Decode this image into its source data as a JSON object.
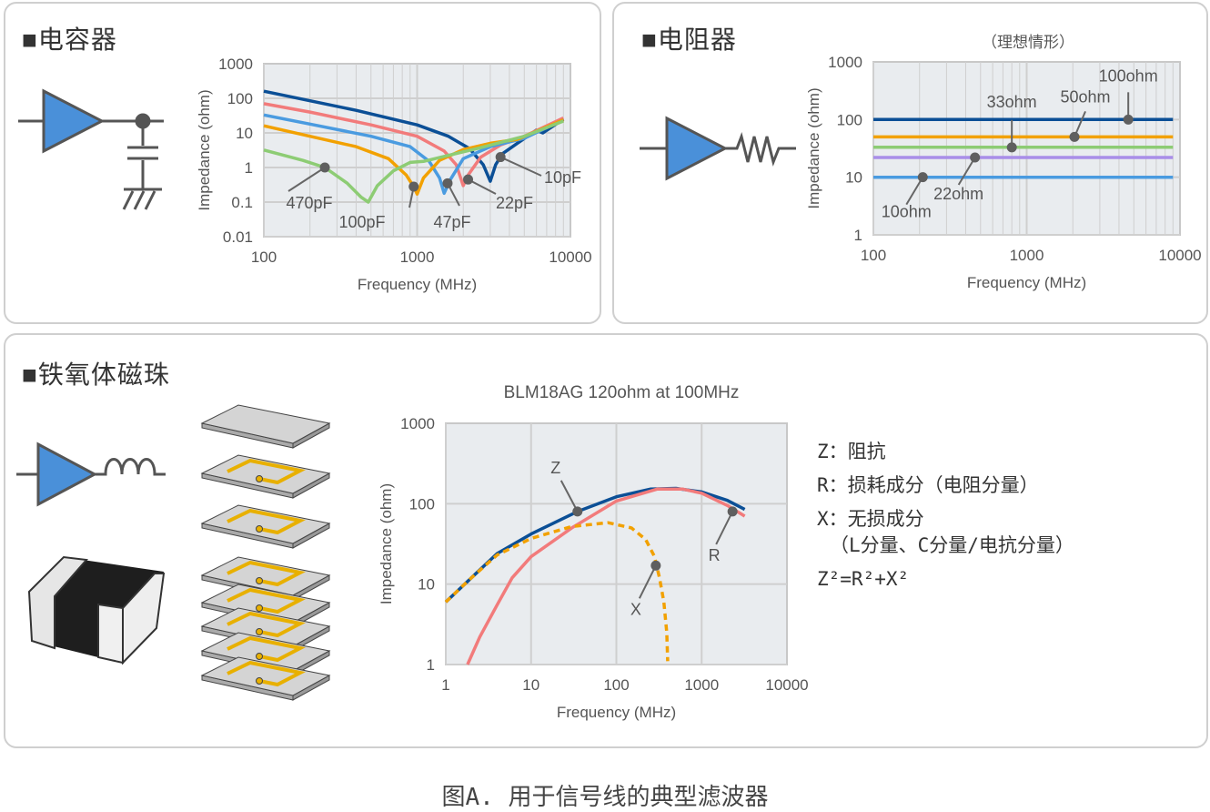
{
  "panels": {
    "capacitor": {
      "title": "■电容器"
    },
    "resistor": {
      "title": "■电阻器",
      "subtitle": "（理想情形）"
    },
    "ferrite": {
      "title": "■铁氧体磁珠",
      "chart_title": "BLM18AG 120ohm at 100MHz"
    }
  },
  "legend": {
    "z": "Z：阻抗",
    "r": "R：损耗成分（电阻分量）",
    "x": "X：无损成分",
    "x_detail": "（L分量、C分量/电抗分量）",
    "formula": "Z²=R²+X²"
  },
  "caption": "图A. 用于信号线的典型滤波器",
  "colors": {
    "dark_blue": "#0b4f96",
    "salmon": "#f27b7b",
    "light_blue": "#4a9be0",
    "orange": "#f2a100",
    "green": "#8dcc74",
    "purple": "#a98ee8",
    "grid_bg": "#e9ecef",
    "marker": "#5f5f5f"
  },
  "chart_data": [
    {
      "id": "capacitor",
      "type": "line",
      "xlabel": "Frequency (MHz)",
      "ylabel": "Impedance (ohm)",
      "xscale": "log",
      "yscale": "log",
      "xlim": [
        100,
        10000
      ],
      "ylim": [
        0.01,
        1000
      ],
      "xticks": [
        "100",
        "1000",
        "10000"
      ],
      "yticks": [
        "0.01",
        "0.1",
        "1",
        "10",
        "100",
        "1000"
      ],
      "grid": true,
      "series": [
        {
          "name": "10pF",
          "color": "#0b4f96",
          "points": [
            [
              100,
              160
            ],
            [
              200,
              85
            ],
            [
              400,
              45
            ],
            [
              1000,
              17
            ],
            [
              1600,
              8
            ],
            [
              2200,
              3.5
            ],
            [
              2700,
              1.2
            ],
            [
              3000,
              0.4
            ],
            [
              3250,
              1.2
            ],
            [
              3600,
              2.5
            ],
            [
              4500,
              5
            ],
            [
              6000,
              12
            ],
            [
              6600,
              10
            ],
            [
              9000,
              25
            ]
          ],
          "marker": [
            3500,
            2
          ]
        },
        {
          "name": "22pF",
          "color": "#f27b7b",
          "points": [
            [
              100,
              70
            ],
            [
              200,
              40
            ],
            [
              500,
              17
            ],
            [
              1000,
              8
            ],
            [
              1500,
              3
            ],
            [
              1800,
              1.2
            ],
            [
              2000,
              0.3
            ],
            [
              2150,
              0.6
            ],
            [
              2600,
              2
            ],
            [
              3500,
              4.5
            ],
            [
              5000,
              8
            ],
            [
              9000,
              27
            ]
          ],
          "marker": [
            2150,
            0.45
          ]
        },
        {
          "name": "47pF",
          "color": "#4a9be0",
          "points": [
            [
              100,
              33
            ],
            [
              200,
              18
            ],
            [
              500,
              8
            ],
            [
              900,
              4
            ],
            [
              1200,
              1.5
            ],
            [
              1400,
              0.5
            ],
            [
              1500,
              0.18
            ],
            [
              1650,
              0.45
            ],
            [
              2000,
              1.8
            ],
            [
              3000,
              4
            ],
            [
              5000,
              7
            ],
            [
              9000,
              24
            ]
          ],
          "marker": [
            1580,
            0.35
          ]
        },
        {
          "name": "100pF",
          "color": "#f2a100",
          "points": [
            [
              100,
              16
            ],
            [
              200,
              8
            ],
            [
              400,
              4
            ],
            [
              650,
              1.8
            ],
            [
              850,
              0.6
            ],
            [
              950,
              0.28
            ],
            [
              1000,
              0.17
            ],
            [
              1100,
              0.5
            ],
            [
              1400,
              1.6
            ],
            [
              2000,
              3.3
            ],
            [
              3000,
              5
            ],
            [
              4500,
              6.5
            ],
            [
              9000,
              24
            ]
          ],
          "marker": [
            950,
            0.28
          ]
        },
        {
          "name": "470pF",
          "color": "#8dcc74",
          "points": [
            [
              100,
              3.2
            ],
            [
              180,
              1.6
            ],
            [
              250,
              1
            ],
            [
              350,
              0.35
            ],
            [
              430,
              0.14
            ],
            [
              480,
              0.1
            ],
            [
              550,
              0.3
            ],
            [
              700,
              0.8
            ],
            [
              900,
              1.4
            ],
            [
              1100,
              1.5
            ],
            [
              1500,
              2.1
            ],
            [
              2500,
              3.6
            ],
            [
              5000,
              8
            ],
            [
              9000,
              22
            ]
          ],
          "marker": [
            250,
            1
          ]
        }
      ],
      "annotations": [
        "470pF",
        "100pF",
        "47pF",
        "22pF",
        "10pF"
      ]
    },
    {
      "id": "resistor",
      "type": "line",
      "xlabel": "Frequency (MHz)",
      "ylabel": "Impedance (ohm)",
      "xscale": "log",
      "yscale": "log",
      "xlim": [
        100,
        10000
      ],
      "ylim": [
        1,
        1000
      ],
      "xticks": [
        "100",
        "1000",
        "10000"
      ],
      "yticks": [
        "1",
        "10",
        "100",
        "1000"
      ],
      "grid": true,
      "series": [
        {
          "name": "100ohm",
          "color": "#0b4f96",
          "value": 100,
          "marker": [
            4600,
            100
          ]
        },
        {
          "name": "50ohm",
          "color": "#f2a100",
          "value": 50,
          "marker": [
            2050,
            50
          ]
        },
        {
          "name": "33ohm",
          "color": "#8dcc74",
          "value": 33,
          "marker": [
            800,
            33
          ]
        },
        {
          "name": "22ohm",
          "color": "#a98ee8",
          "value": 22,
          "marker": [
            460,
            22
          ]
        },
        {
          "name": "10ohm",
          "color": "#4a9be0",
          "value": 10,
          "marker": [
            210,
            10
          ]
        }
      ],
      "xrange_data": [
        100,
        9000
      ]
    },
    {
      "id": "ferrite",
      "type": "line",
      "title": "BLM18AG 120ohm at 100MHz",
      "xlabel": "Frequency (MHz)",
      "ylabel": "Impedance (ohm)",
      "xscale": "log",
      "yscale": "log",
      "xlim": [
        1,
        10000
      ],
      "ylim": [
        1,
        1000
      ],
      "xticks": [
        "1",
        "10",
        "100",
        "1000",
        "10000"
      ],
      "yticks": [
        "1",
        "10",
        "100",
        "1000"
      ],
      "grid": true,
      "series": [
        {
          "name": "Z",
          "color": "#0b4f96",
          "dashed": false,
          "points": [
            [
              1,
              6
            ],
            [
              2,
              12
            ],
            [
              4,
              24
            ],
            [
              10,
              42
            ],
            [
              35,
              80
            ],
            [
              100,
              122
            ],
            [
              250,
              152
            ],
            [
              500,
              155
            ],
            [
              1000,
              140
            ],
            [
              2000,
              110
            ],
            [
              3200,
              85
            ]
          ],
          "marker": [
            35,
            80
          ]
        },
        {
          "name": "R",
          "color": "#f27b7b",
          "dashed": false,
          "points": [
            [
              1.8,
              1
            ],
            [
              2.5,
              2.2
            ],
            [
              4,
              5.5
            ],
            [
              6,
              12
            ],
            [
              10,
              22
            ],
            [
              30,
              50
            ],
            [
              100,
              108
            ],
            [
              300,
              152
            ],
            [
              600,
              152
            ],
            [
              1000,
              135
            ],
            [
              2000,
              95
            ],
            [
              3200,
              70
            ]
          ],
          "marker": [
            2300,
            80
          ]
        },
        {
          "name": "X",
          "color": "#f2a100",
          "dashed": true,
          "points": [
            [
              1,
              6
            ],
            [
              2,
              12
            ],
            [
              4,
              23
            ],
            [
              10,
              37
            ],
            [
              30,
              52
            ],
            [
              80,
              58
            ],
            [
              150,
              50
            ],
            [
              220,
              36
            ],
            [
              280,
              22
            ],
            [
              320,
              12
            ],
            [
              360,
              6
            ],
            [
              390,
              2.5
            ],
            [
              400,
              1.1
            ]
          ],
          "marker": [
            290,
            17
          ]
        }
      ]
    }
  ]
}
